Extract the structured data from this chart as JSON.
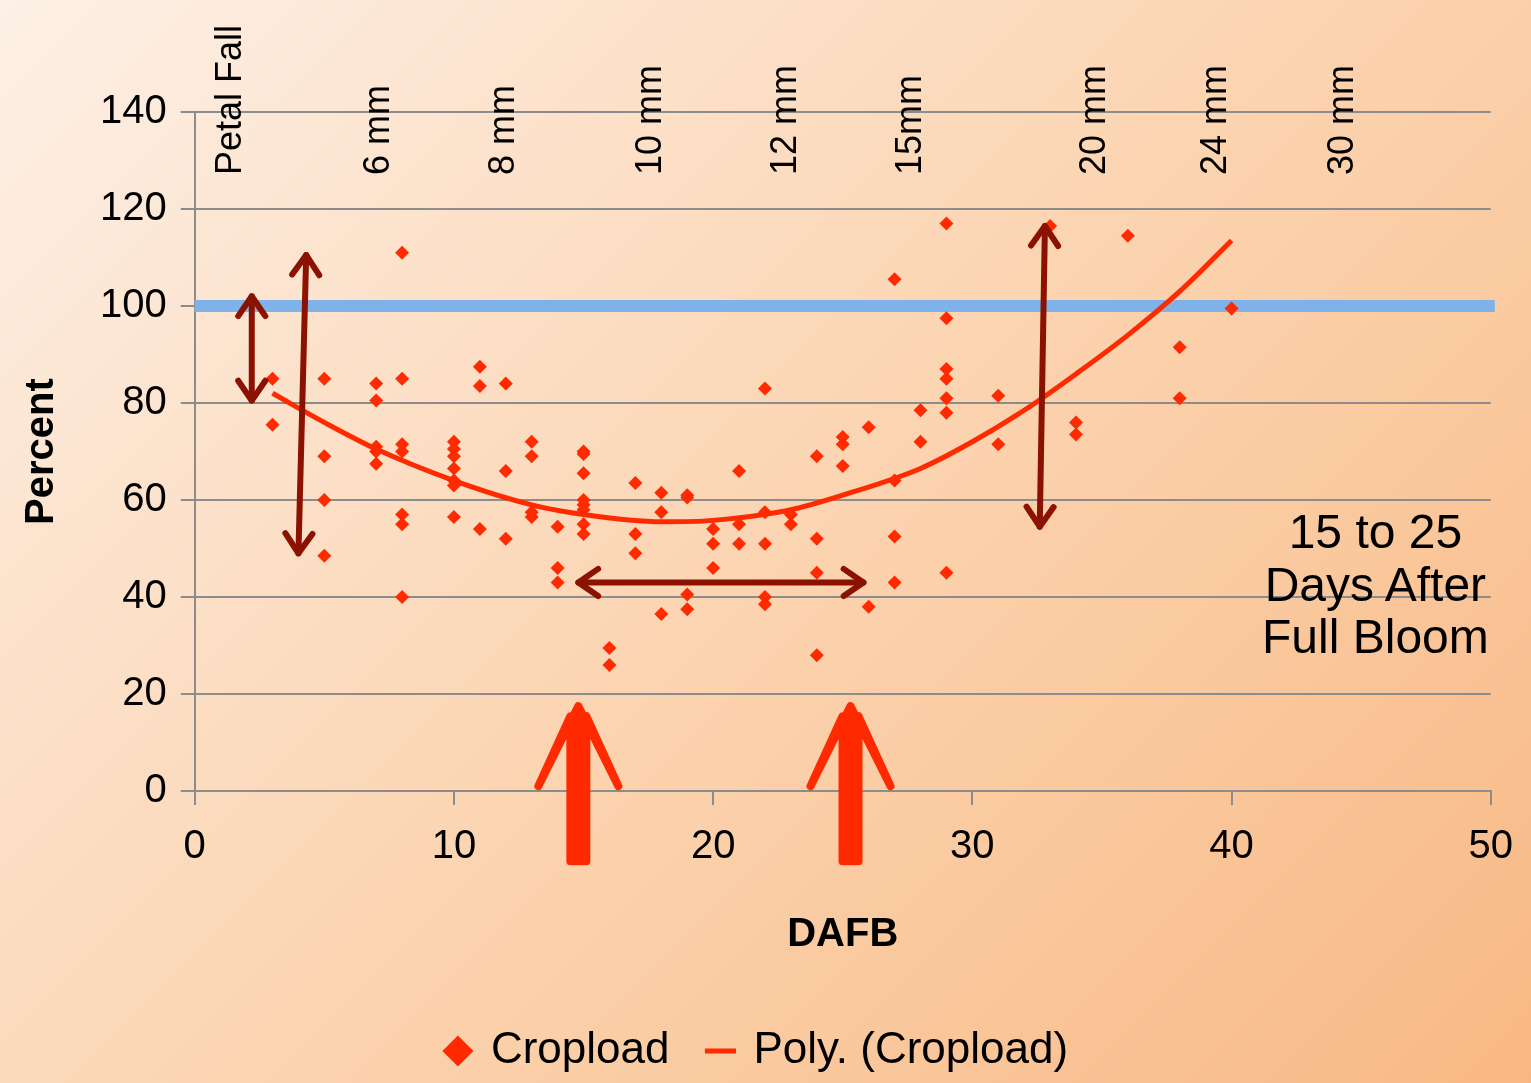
{
  "chart_data": {
    "type": "scatter",
    "xlabel": "DAFB",
    "ylabel": "Percent",
    "xlim": [
      0,
      50
    ],
    "xticks": [
      0,
      10,
      20,
      30,
      40,
      50
    ],
    "ylim": [
      0,
      140
    ],
    "yticks": [
      0,
      20,
      40,
      60,
      80,
      100,
      120,
      140
    ],
    "grid": "y",
    "legend": "bottom",
    "marker": "diamond",
    "series": [
      {
        "name": "Cropload",
        "color": "#ff2a00",
        "x": [
          3,
          3,
          5,
          5,
          5,
          5,
          7,
          7,
          7,
          7,
          7,
          8,
          8,
          8,
          8,
          8,
          8,
          8,
          10,
          10,
          10,
          10,
          10,
          10,
          10,
          11,
          11,
          11,
          12,
          12,
          12,
          13,
          13,
          13,
          13,
          14,
          14,
          14,
          15,
          15,
          15,
          15,
          15,
          15,
          15,
          15,
          16,
          16,
          17,
          17,
          17,
          18,
          18,
          18,
          19,
          19,
          19,
          19,
          20,
          20,
          20,
          21,
          21,
          21,
          22,
          22,
          22,
          22,
          22,
          23,
          23,
          24,
          24,
          24,
          24,
          25,
          25,
          25,
          26,
          26,
          27,
          27,
          27,
          27,
          28,
          28,
          29,
          29,
          29,
          29,
          29,
          29,
          29,
          31,
          31,
          33,
          34,
          34,
          36,
          38,
          38,
          40
        ],
        "values": [
          85,
          75.5,
          85,
          69,
          60,
          48.5,
          84,
          80.5,
          71,
          70,
          67.5,
          111,
          85,
          71.5,
          70,
          57,
          55,
          40,
          72,
          70.5,
          69,
          66.5,
          64,
          63,
          56.5,
          87.5,
          83.5,
          54,
          84,
          66,
          52,
          72,
          69,
          57.5,
          56.5,
          54.5,
          46,
          43,
          70,
          69.5,
          65.5,
          60,
          59,
          58,
          55,
          53,
          29.5,
          26,
          63.5,
          53,
          49,
          61.5,
          57.5,
          36.5,
          61,
          60.5,
          40.5,
          37.5,
          54,
          51,
          46,
          66,
          55,
          51,
          83,
          57.5,
          51,
          40,
          38.5,
          57,
          55,
          69,
          52,
          45,
          28,
          73,
          71.5,
          67,
          75,
          38,
          105.5,
          64,
          52.5,
          43,
          78.5,
          72,
          117,
          97.5,
          87,
          85,
          81,
          78,
          45,
          81.5,
          71.5,
          116.5,
          76,
          73.5,
          114.5,
          91.5,
          81,
          99.5
        ]
      },
      {
        "name": "Poly. (Cropload)",
        "type": "line",
        "color": "#ff2a00",
        "marker": "none",
        "x": [
          3,
          5,
          7,
          10,
          13,
          15,
          18,
          20,
          23,
          25,
          28,
          30,
          32,
          34,
          36,
          38,
          40
        ],
        "values": [
          82,
          76,
          70.5,
          64,
          59,
          57,
          55.5,
          55.8,
          58,
          61,
          66.5,
          72,
          78.5,
          86,
          94,
          103,
          113.5
        ]
      }
    ],
    "ref_lines": [
      {
        "axis": "y",
        "value": 100,
        "color": "#7fb2e8"
      }
    ],
    "annotations": [
      "Petal Fall",
      "6 mm",
      "8 mm",
      "10 mm",
      "12 mm",
      "15mm",
      "20 mm",
      "24 mm",
      "30 mm",
      "15 to 25\nDays After\nFull Bloom"
    ]
  }
}
